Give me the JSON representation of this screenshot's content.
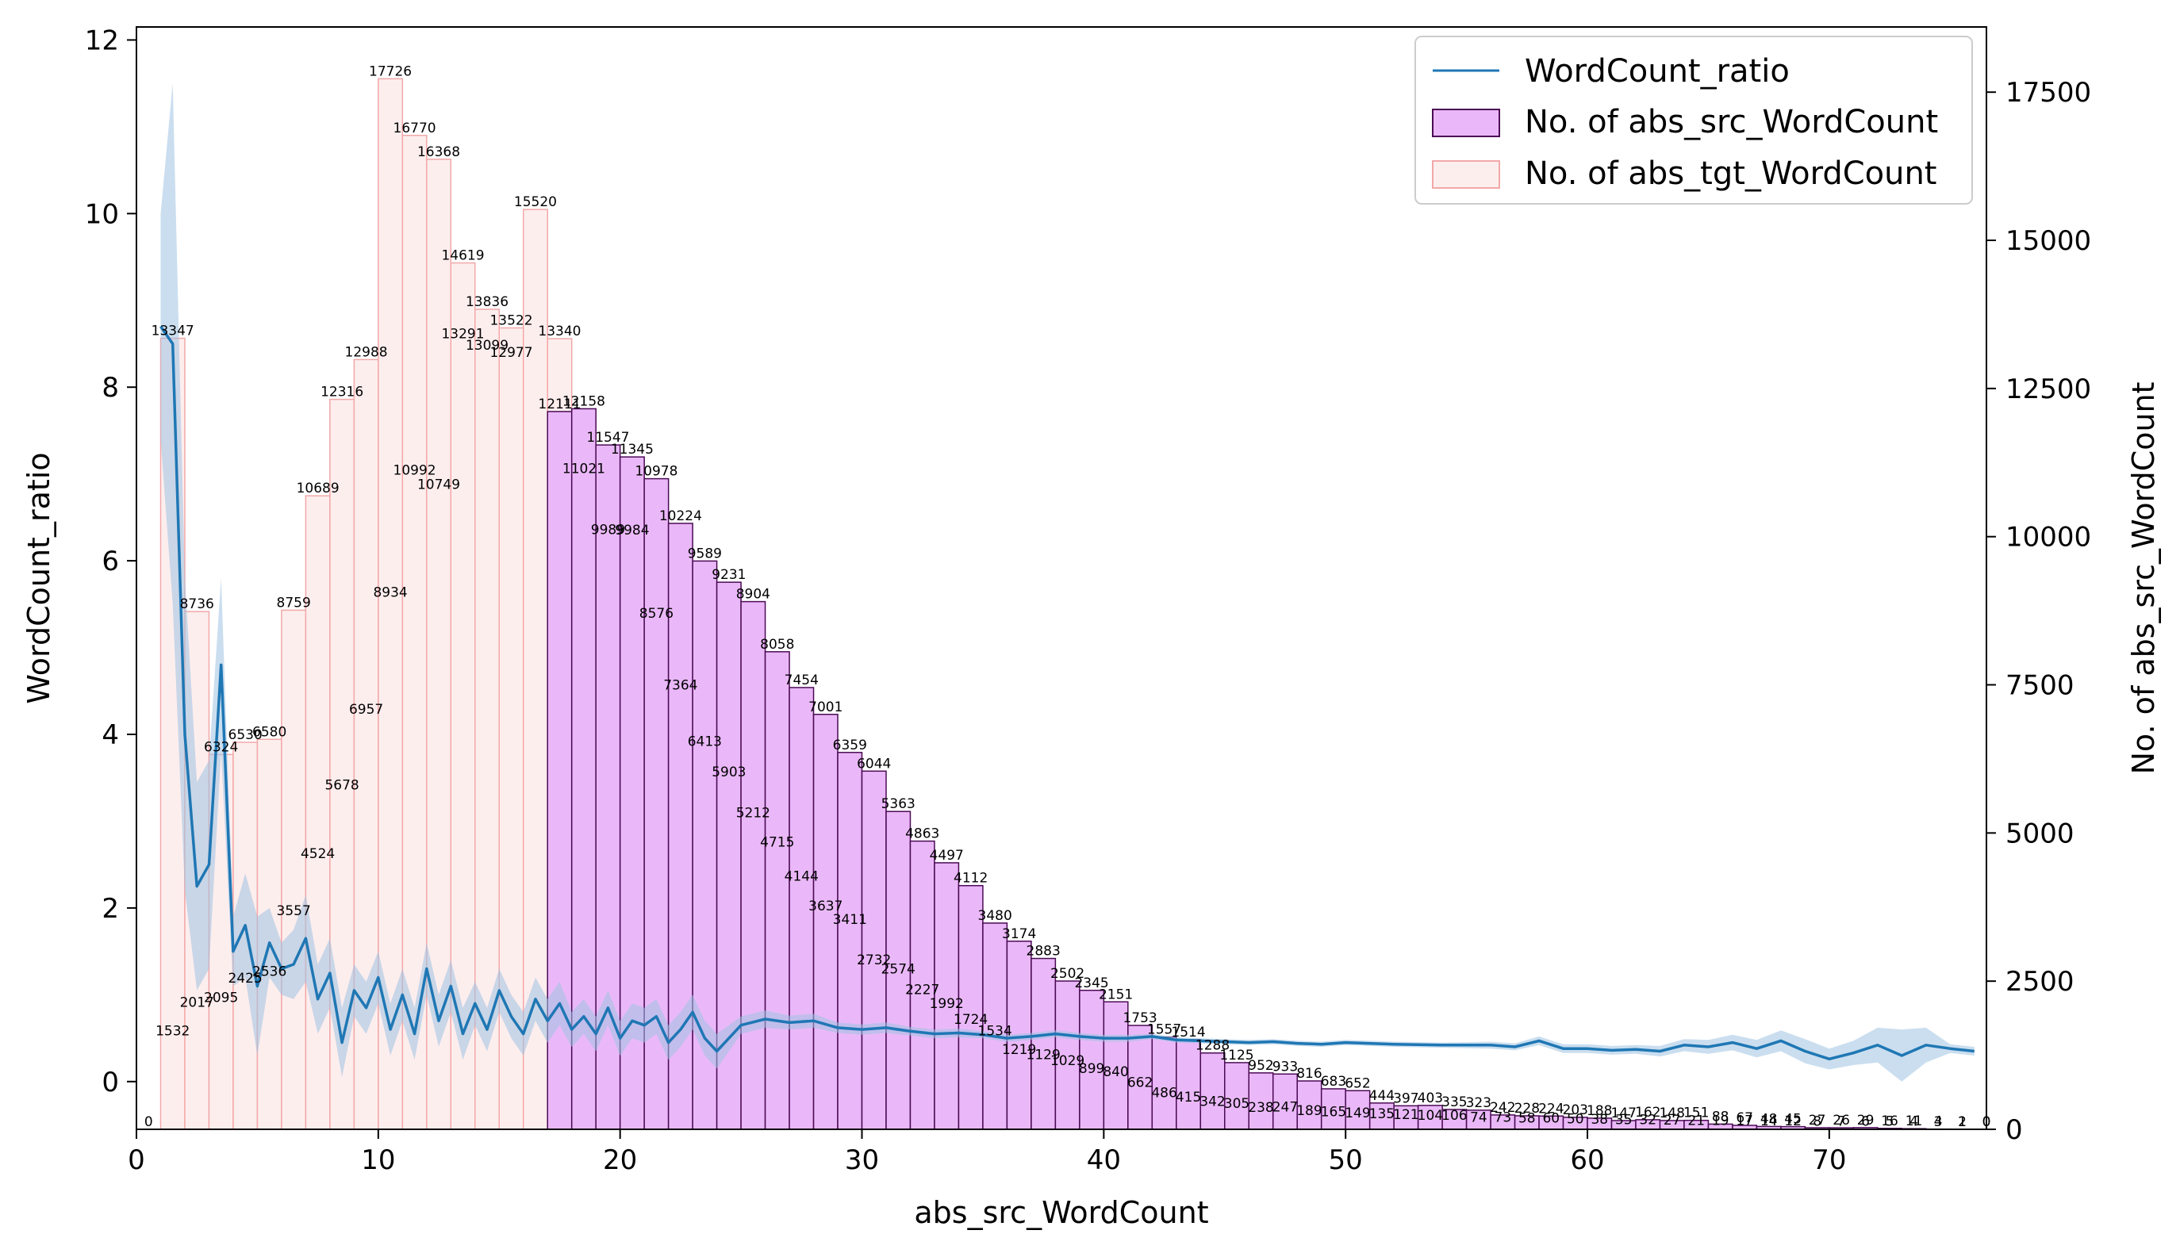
{
  "chart_data": {
    "type": "bar",
    "xlabel": "abs_src_WordCount",
    "ylabel": "WordCount_ratio",
    "y2label": "No. of abs_src_WordCount",
    "xlim": [
      0,
      76.5
    ],
    "ylim": [
      -0.55,
      12.15
    ],
    "y2lim": [
      0,
      18600
    ],
    "xticks": [
      0,
      10,
      20,
      30,
      40,
      50,
      60,
      70
    ],
    "yticks": [
      0,
      2,
      4,
      6,
      8,
      10,
      12
    ],
    "y2ticks": [
      0,
      2500,
      5000,
      7500,
      10000,
      12500,
      15000,
      17500
    ],
    "grid": false,
    "legend_position": "top-right",
    "legend": [
      "WordCount_ratio",
      "No. of abs_src_WordCount",
      "No. of abs_tgt_WordCount"
    ],
    "colors": {
      "ratio_line": "#1f77b4",
      "ratio_band": "#9ec3e2",
      "src_fill": "#eab8f8",
      "src_edge": "#4b0a55",
      "tgt_fill": "#fdeeee",
      "tgt_edge": "#f2a8a8"
    },
    "series": [
      {
        "name": "No. of abs_src_WordCount",
        "kind": "bar",
        "x": [
          17,
          18,
          19,
          20,
          21,
          22,
          23,
          24,
          25,
          26,
          27,
          28,
          29,
          30,
          31,
          32,
          33,
          34,
          35,
          36,
          37,
          38,
          39,
          40,
          41,
          42,
          43,
          44,
          45,
          46,
          47,
          48,
          49,
          50,
          51,
          52,
          53,
          54,
          55,
          56,
          57,
          58,
          59,
          60,
          61,
          62,
          63,
          64,
          65,
          66,
          67,
          68,
          69,
          70,
          71,
          72,
          73,
          74,
          75,
          76
        ],
        "values": [
          12111,
          12158,
          11547,
          11345,
          10978,
          10224,
          9589,
          9231,
          8904,
          8058,
          7454,
          7001,
          6359,
          6044,
          5363,
          4863,
          4497,
          4112,
          3480,
          3174,
          2883,
          2502,
          2345,
          2151,
          1753,
          1557,
          1514,
          1288,
          1125,
          952,
          933,
          816,
          683,
          652,
          444,
          397,
          403,
          335,
          323,
          242,
          228,
          224,
          203,
          188,
          147,
          162,
          148,
          151,
          88,
          67,
          48,
          45,
          27,
          26,
          29,
          16,
          11,
          4,
          2,
          0
        ],
        "labels": [
          "12111",
          "12158",
          "11547",
          "11345",
          "10978",
          "10224",
          "9589",
          "9231",
          "8904",
          "8058",
          "7454",
          "7001",
          "6359",
          "6044",
          "5363",
          "4863",
          "4497",
          "4112",
          "3480",
          "3174",
          "2883",
          "2502",
          "2345",
          "2151",
          "1753",
          "1557",
          "1514",
          "1288",
          "1125",
          "952",
          "933",
          "816",
          "683",
          "652",
          "444",
          "397",
          "403",
          "335",
          "323",
          "242",
          "228",
          "224",
          "203",
          "188",
          "147",
          "162",
          "148",
          "151",
          "88",
          "67",
          "48",
          "45",
          "27",
          "26",
          "29",
          "16",
          "11",
          "4",
          "2",
          "0"
        ]
      },
      {
        "name": "No. of abs_tgt_WordCount",
        "kind": "bar",
        "x": [
          1,
          2,
          3,
          4,
          5,
          6,
          7,
          8,
          9,
          10,
          11,
          12,
          13,
          14,
          15,
          16,
          17,
          18,
          19,
          20,
          21,
          22,
          23,
          24,
          25,
          26,
          27,
          28,
          29,
          30,
          31,
          32,
          33,
          34,
          35,
          36,
          37,
          38,
          39,
          40,
          41,
          42,
          43,
          44,
          45,
          46,
          47,
          48,
          49,
          50,
          51,
          52,
          53,
          54,
          55,
          56,
          57,
          58,
          59,
          60,
          61,
          62,
          63,
          64,
          65,
          66,
          67,
          68,
          69,
          70,
          71,
          72,
          73,
          74,
          75,
          76
        ],
        "values": [
          13347,
          8736,
          6324,
          6530,
          6580,
          8759,
          10689,
          12316,
          12988,
          17726,
          16770,
          16368,
          14619,
          13836,
          13522,
          15520,
          13340,
          11021,
          9989,
          9984,
          8576,
          7364,
          6413,
          5903,
          5212,
          4715,
          4144,
          3637,
          3411,
          2732,
          2574,
          2227,
          1992,
          1724,
          1534,
          1219,
          1129,
          1029,
          899,
          840,
          662,
          486,
          415,
          342,
          305,
          238,
          247,
          189,
          165,
          149,
          135,
          121,
          104,
          106,
          74,
          73,
          58,
          60,
          50,
          38,
          35,
          32,
          27,
          21,
          19,
          17,
          14,
          12,
          8,
          7,
          6,
          5,
          4,
          3,
          1,
          0
        ],
        "labels": [
          "13347",
          "8736",
          "6324",
          "6530",
          "6580",
          "8759",
          "10689",
          "12316",
          "12988",
          "17726",
          "16770",
          "16368",
          "14619",
          "13836",
          "13522",
          "15520",
          "13340",
          "11021",
          "9989",
          "9984",
          "8576",
          "7364",
          "6413",
          "5903",
          "5212",
          "4715",
          "4144",
          "3637",
          "3411",
          "2732",
          "2574",
          "2227",
          "1992",
          "1724",
          "1534",
          "1219",
          "1129",
          "1029",
          "899",
          "840",
          "662",
          "486",
          "415",
          "342",
          "305",
          "238",
          "247",
          "189",
          "165",
          "149",
          "135",
          "121",
          "104",
          "106",
          "74",
          "73",
          "58",
          "60",
          "50",
          "38",
          "35",
          "32",
          "27",
          "21",
          "19",
          "17",
          "14",
          "12",
          "8",
          "7",
          "6",
          "5",
          "4",
          "3",
          "1",
          "0"
        ]
      },
      {
        "name": "No. of abs_src_WordCount (lower)",
        "kind": "bar",
        "x": [
          0,
          1,
          2,
          3,
          4,
          5,
          6,
          7,
          8,
          9,
          10,
          11,
          12,
          13,
          14,
          15,
          16
        ],
        "values": [
          0,
          1532,
          2017,
          2095,
          2425,
          2536,
          3557,
          4524,
          5678,
          6957,
          8934,
          10992,
          10749,
          13291,
          13099,
          12977,
          12111
        ],
        "labels": [
          "0",
          "1532",
          "2017",
          "2095",
          "2425",
          "2536",
          "3557",
          "4524",
          "5678",
          "6957",
          "8934",
          "10992",
          "10749",
          "13291",
          "13099",
          "12977",
          ""
        ]
      },
      {
        "name": "WordCount_ratio",
        "kind": "line",
        "x": [
          1,
          1.5,
          2,
          2.5,
          3,
          3.5,
          4,
          4.5,
          5,
          5.5,
          6,
          6.5,
          7,
          7.5,
          8,
          8.5,
          9,
          9.5,
          10,
          10.5,
          11,
          11.5,
          12,
          12.5,
          13,
          13.5,
          14,
          14.5,
          15,
          15.5,
          16,
          16.5,
          17,
          17.5,
          18,
          18.5,
          19,
          19.5,
          20,
          20.5,
          21,
          21.5,
          22,
          22.5,
          23,
          23.5,
          24,
          25,
          26,
          27,
          28,
          29,
          30,
          31,
          32,
          33,
          34,
          35,
          36,
          37,
          38,
          39,
          40,
          41,
          42,
          43,
          44,
          45,
          46,
          47,
          48,
          49,
          50,
          52,
          54,
          56,
          57,
          58,
          59,
          60,
          61,
          62,
          63,
          64,
          65,
          66,
          67,
          68,
          69,
          70,
          71,
          72,
          73,
          74,
          75,
          76
        ],
        "values": [
          8.7,
          8.5,
          4.0,
          2.25,
          2.5,
          4.8,
          1.5,
          1.8,
          1.1,
          1.6,
          1.3,
          1.35,
          1.65,
          0.95,
          1.25,
          0.45,
          1.05,
          0.85,
          1.2,
          0.6,
          1.0,
          0.55,
          1.3,
          0.7,
          1.1,
          0.55,
          0.9,
          0.6,
          1.05,
          0.75,
          0.55,
          0.95,
          0.7,
          0.9,
          0.6,
          0.75,
          0.55,
          0.85,
          0.5,
          0.7,
          0.65,
          0.75,
          0.45,
          0.6,
          0.8,
          0.5,
          0.35,
          0.65,
          0.72,
          0.68,
          0.7,
          0.62,
          0.6,
          0.62,
          0.58,
          0.55,
          0.56,
          0.54,
          0.5,
          0.52,
          0.55,
          0.52,
          0.5,
          0.5,
          0.52,
          0.48,
          0.47,
          0.46,
          0.45,
          0.46,
          0.44,
          0.43,
          0.45,
          0.43,
          0.42,
          0.42,
          0.4,
          0.47,
          0.38,
          0.38,
          0.36,
          0.37,
          0.35,
          0.42,
          0.4,
          0.45,
          0.38,
          0.47,
          0.35,
          0.26,
          0.33,
          0.42,
          0.3,
          0.42,
          0.38,
          0.35
        ],
        "band_half_width": [
          1.3,
          3.0,
          1.8,
          1.2,
          1.2,
          1.0,
          0.4,
          0.6,
          0.8,
          0.4,
          0.3,
          0.4,
          0.5,
          0.4,
          0.4,
          0.4,
          0.3,
          0.3,
          0.3,
          0.3,
          0.3,
          0.3,
          0.3,
          0.3,
          0.3,
          0.3,
          0.25,
          0.25,
          0.25,
          0.25,
          0.25,
          0.25,
          0.25,
          0.25,
          0.2,
          0.2,
          0.2,
          0.2,
          0.2,
          0.2,
          0.2,
          0.2,
          0.2,
          0.2,
          0.2,
          0.2,
          0.2,
          0.1,
          0.1,
          0.08,
          0.08,
          0.06,
          0.06,
          0.06,
          0.05,
          0.05,
          0.05,
          0.04,
          0.04,
          0.04,
          0.04,
          0.04,
          0.04,
          0.04,
          0.03,
          0.03,
          0.03,
          0.03,
          0.03,
          0.03,
          0.03,
          0.03,
          0.03,
          0.03,
          0.03,
          0.04,
          0.04,
          0.05,
          0.05,
          0.05,
          0.05,
          0.05,
          0.06,
          0.07,
          0.08,
          0.09,
          0.1,
          0.12,
          0.14,
          0.12,
          0.14,
          0.2,
          0.3,
          0.2,
          0.05,
          0.05
        ]
      }
    ]
  }
}
